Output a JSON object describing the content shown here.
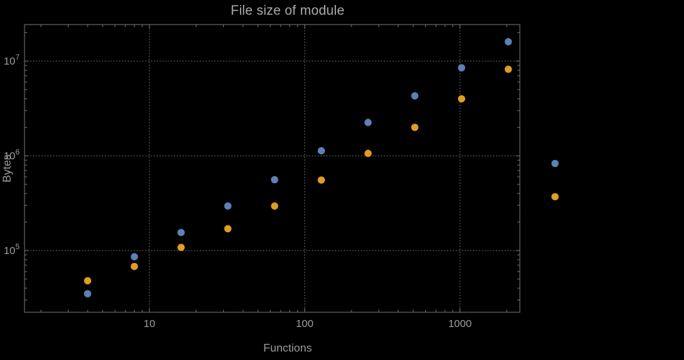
{
  "page": {
    "background": "#000000"
  },
  "chart_data": {
    "type": "scatter",
    "title": "File size of module",
    "xlabel": "Functions",
    "ylabel": "Bytes",
    "x_scale": "log10",
    "y_scale": "log10",
    "x_range": [
      1.57,
      2430
    ],
    "y_range": [
      22300,
      24300000
    ],
    "grid": true,
    "grid_style": "dotted",
    "legend": "none",
    "x_ticks": [
      10,
      100,
      1000
    ],
    "x_tick_labels": [
      "10",
      "100",
      "1000"
    ],
    "y_ticks": [
      100000,
      1000000,
      10000000
    ],
    "y_tick_labels": [
      {
        "base": "10",
        "exponent": "5"
      },
      {
        "base": "10",
        "exponent": "6"
      },
      {
        "base": "10",
        "exponent": "7"
      }
    ],
    "series": [
      {
        "name": "blue-series",
        "color": "#5e81b5",
        "marker": "circle",
        "points": [
          [
            4,
            35000
          ],
          [
            8,
            86000
          ],
          [
            16,
            155000
          ],
          [
            32,
            295000
          ],
          [
            64,
            560000
          ],
          [
            128,
            1130000
          ],
          [
            256,
            2250000
          ],
          [
            512,
            4300000
          ],
          [
            1024,
            8500000
          ],
          [
            2048,
            16000000
          ],
          [
            4096,
            830000
          ]
        ]
      },
      {
        "name": "orange-series",
        "color": "#e19c24",
        "marker": "circle",
        "points": [
          [
            4,
            48000
          ],
          [
            8,
            68000
          ],
          [
            16,
            108000
          ],
          [
            32,
            170000
          ],
          [
            64,
            295000
          ],
          [
            128,
            555000
          ],
          [
            256,
            1060000
          ],
          [
            512,
            2000000
          ],
          [
            1024,
            4000000
          ],
          [
            2048,
            8200000
          ],
          [
            4096,
            370000
          ]
        ]
      }
    ],
    "colors": {
      "grid": "#5e5e5e",
      "frame": "#747474",
      "tick_text": "#9c9c9c",
      "title_text": "#ababab",
      "background": "#000000"
    }
  }
}
